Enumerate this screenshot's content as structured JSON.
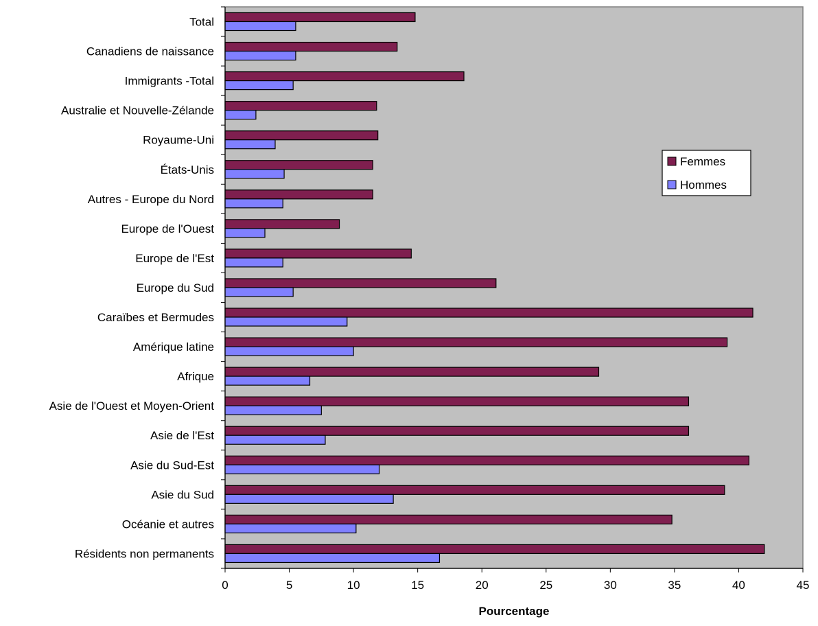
{
  "chart_data": {
    "type": "bar",
    "orientation": "horizontal",
    "title": "",
    "xlabel": "Pourcentage",
    "ylabel": "",
    "xlim": [
      0,
      45
    ],
    "x_ticks": [
      0,
      5,
      10,
      15,
      20,
      25,
      30,
      35,
      40,
      45
    ],
    "x_tick_labels": [
      "0",
      "5",
      "10",
      "15",
      "20",
      "25",
      "30",
      "35",
      "40",
      "45"
    ],
    "grid": false,
    "legend_position": "right",
    "plot_background": "#c0c0c0",
    "categories": [
      "Total",
      "Canadiens de naissance",
      "Immigrants -Total",
      "Australie et Nouvelle-Zélande",
      "Royaume-Uni",
      "États-Unis",
      "Autres - Europe du Nord",
      "Europe de l'Ouest",
      "Europe de l'Est",
      "Europe du Sud",
      "Caraïbes et Bermudes",
      "Amérique latine",
      "Afrique",
      "Asie de l'Ouest et Moyen-Orient",
      "Asie de l'Est",
      "Asie du Sud-Est",
      "Asie du Sud",
      "Océanie et autres",
      "Résidents non permanents"
    ],
    "series": [
      {
        "name": "Femmes",
        "color": "#7f1f4f",
        "values": [
          14.8,
          13.4,
          18.6,
          11.8,
          11.9,
          11.5,
          11.5,
          8.9,
          14.5,
          21.1,
          41.1,
          39.1,
          29.1,
          36.1,
          36.1,
          40.8,
          38.9,
          34.8,
          42.0
        ]
      },
      {
        "name": "Hommes",
        "color": "#8080ff",
        "values": [
          5.5,
          5.5,
          5.3,
          2.4,
          3.9,
          4.6,
          4.5,
          3.1,
          4.5,
          5.3,
          9.5,
          10.0,
          6.6,
          7.5,
          7.8,
          12.0,
          13.1,
          10.2,
          16.7
        ]
      }
    ]
  }
}
